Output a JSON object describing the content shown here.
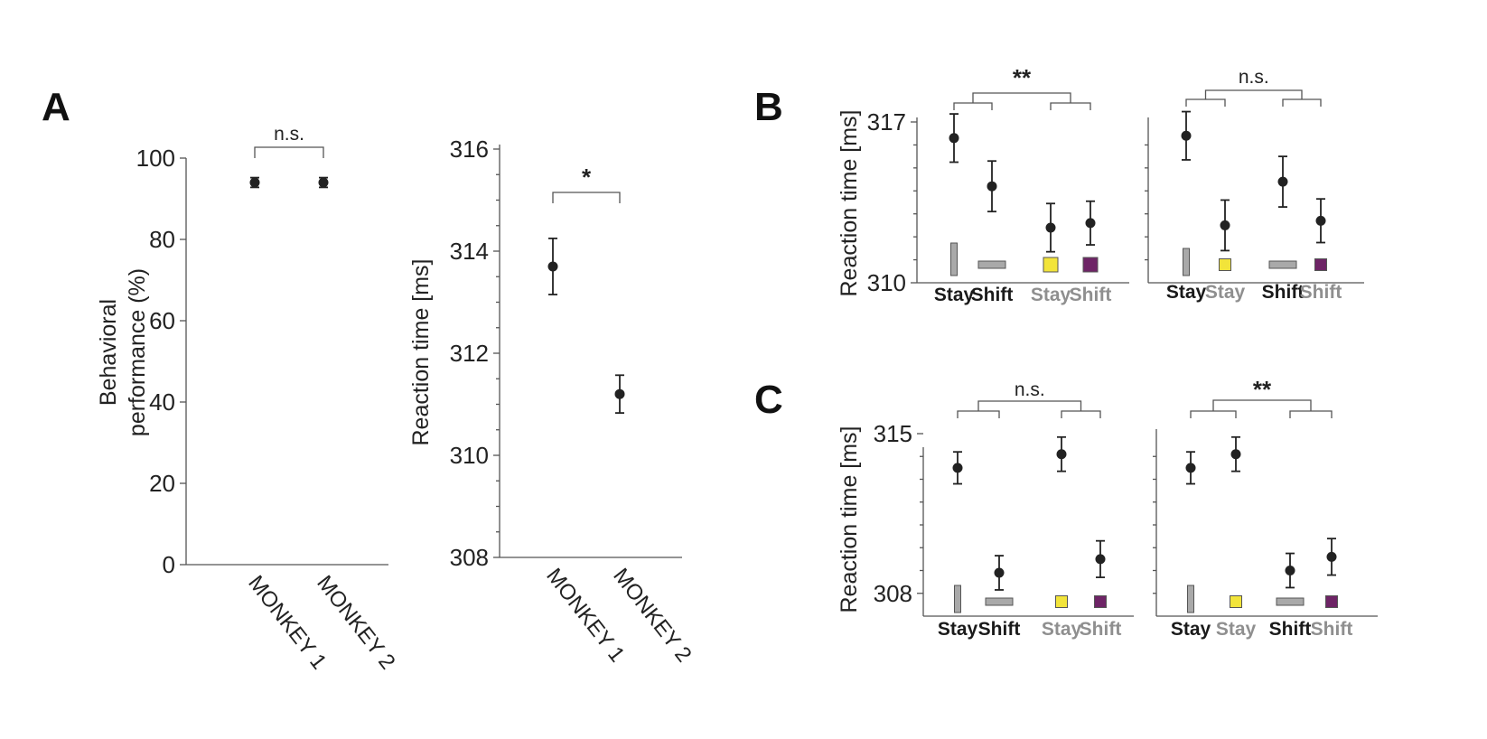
{
  "panel_letters": [
    "A",
    "B",
    "C"
  ],
  "colors": {
    "grey_icon": "#a9a9a9",
    "yellow_icon": "#f2e43a",
    "purple_icon": "#6e2466",
    "label_dark": "#1a1a1a",
    "label_grey": "#8f8f8f"
  },
  "chart_data": [
    {
      "id": "A1",
      "type": "scatter",
      "ylabel": "Behavioral performance (%)",
      "ylim": [
        0,
        100
      ],
      "yticks": [
        0,
        20,
        40,
        60,
        80,
        100
      ],
      "categories": [
        "MONKEY 1",
        "MONKEY 2"
      ],
      "values": [
        94,
        94
      ],
      "errors": [
        1.2,
        1.2
      ],
      "comparisons": [
        {
          "label": "n.s.",
          "between": [
            0,
            1
          ]
        }
      ]
    },
    {
      "id": "A2",
      "type": "scatter",
      "ylabel": "Reaction time [ms]",
      "ylim": [
        308,
        316
      ],
      "yticks": [
        308,
        310,
        312,
        314,
        316
      ],
      "categories": [
        "MONKEY 1",
        "MONKEY 2"
      ],
      "values": [
        313.7,
        311.2
      ],
      "errors": [
        0.55,
        0.37
      ],
      "comparisons": [
        {
          "label": "*",
          "between": [
            0,
            1
          ]
        }
      ]
    },
    {
      "id": "B1",
      "type": "scatter",
      "ylabel": "Reaction time [ms]",
      "ylim": [
        310,
        317
      ],
      "yticks": [
        310,
        317
      ],
      "categories": [
        "Stay",
        "Shift",
        "Stay",
        "Shift"
      ],
      "category_shades": [
        "dark",
        "dark",
        "grey",
        "grey"
      ],
      "icons": [
        "grey-vertical-bar",
        "grey-horizontal-bar",
        "yellow-square",
        "purple-square"
      ],
      "values": [
        316.3,
        314.2,
        312.4,
        312.6
      ],
      "errors": [
        1.05,
        1.1,
        1.05,
        0.95
      ],
      "comparisons": [
        {
          "label": "**",
          "between": [
            [
              0,
              1
            ],
            [
              2,
              3
            ]
          ]
        }
      ]
    },
    {
      "id": "B2",
      "type": "scatter",
      "ylim": [
        310,
        317
      ],
      "categories": [
        "Stay",
        "Stay",
        "Shift",
        "Shift"
      ],
      "category_shades": [
        "dark",
        "grey",
        "dark",
        "grey"
      ],
      "icons": [
        "grey-vertical-bar",
        "yellow-square",
        "grey-horizontal-bar",
        "purple-square"
      ],
      "values": [
        316.4,
        312.5,
        314.4,
        312.7
      ],
      "errors": [
        1.05,
        1.1,
        1.1,
        0.95
      ],
      "comparisons": [
        {
          "label": "n.s.",
          "between": [
            [
              0,
              1
            ],
            [
              2,
              3
            ]
          ]
        }
      ]
    },
    {
      "id": "C1",
      "type": "scatter",
      "ylabel": "Reaction time [ms]",
      "ylim": [
        307,
        315
      ],
      "yticks": [
        308,
        315
      ],
      "categories": [
        "Stay",
        "Shift",
        "Stay",
        "Shift"
      ],
      "category_shades": [
        "dark",
        "dark",
        "grey",
        "grey"
      ],
      "icons": [
        "grey-vertical-bar",
        "grey-horizontal-bar",
        "yellow-square",
        "purple-square"
      ],
      "values": [
        313.5,
        308.9,
        314.1,
        309.5
      ],
      "errors": [
        0.7,
        0.75,
        0.75,
        0.8
      ],
      "comparisons": [
        {
          "label": "n.s.",
          "between": [
            [
              0,
              1
            ],
            [
              2,
              3
            ]
          ]
        }
      ]
    },
    {
      "id": "C2",
      "type": "scatter",
      "ylim": [
        307,
        315
      ],
      "categories": [
        "Stay",
        "Stay",
        "Shift",
        "Shift"
      ],
      "category_shades": [
        "dark",
        "grey",
        "dark",
        "grey"
      ],
      "icons": [
        "grey-vertical-bar",
        "yellow-square",
        "grey-horizontal-bar",
        "purple-square"
      ],
      "values": [
        313.5,
        314.1,
        309.0,
        309.6
      ],
      "errors": [
        0.7,
        0.75,
        0.75,
        0.8
      ],
      "comparisons": [
        {
          "label": "**",
          "between": [
            [
              0,
              1
            ],
            [
              2,
              3
            ]
          ]
        }
      ]
    }
  ]
}
